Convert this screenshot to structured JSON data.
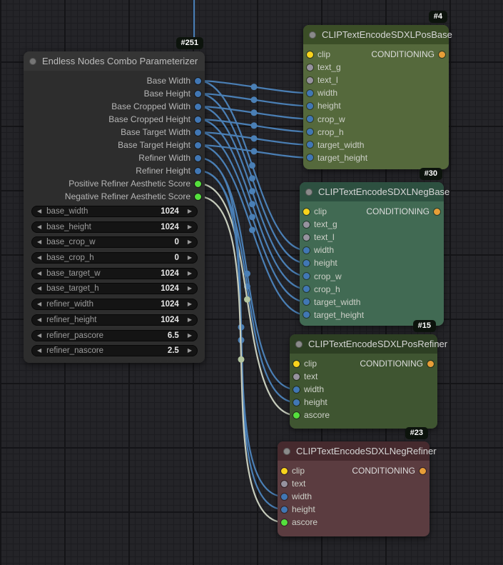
{
  "colors": {
    "link_int": "#4a7fb5",
    "link_float": "#c6ccbc",
    "middot_float": "#b4c6a0",
    "dot_int": "#4177b4",
    "dot_float": "#55df3d",
    "dot_clip": "#f8d31c",
    "dot_text": "#96929e",
    "dot_conditioning": "#e79e38",
    "badge_bg": "#0c130c"
  },
  "nodes": {
    "parameterizer": {
      "badge": "#251",
      "title": "Endless Nodes Combo Parameterizer",
      "header_color": "#353535",
      "body_color": "#2d2d2d",
      "outputs": [
        {
          "label": "Base Width",
          "type": "int"
        },
        {
          "label": "Base Height",
          "type": "int"
        },
        {
          "label": "Base Cropped Width",
          "type": "int"
        },
        {
          "label": "Base Cropped Height",
          "type": "int"
        },
        {
          "label": "Base Target Width",
          "type": "int"
        },
        {
          "label": "Base Target Height",
          "type": "int"
        },
        {
          "label": "Refiner Width",
          "type": "int"
        },
        {
          "label": "Refiner Height",
          "type": "int"
        },
        {
          "label": "Positive Refiner Aesthetic Score",
          "type": "float"
        },
        {
          "label": "Negative Refiner Aesthetic Score",
          "type": "float"
        }
      ],
      "widgets": [
        {
          "name": "base_width",
          "value": "1024"
        },
        {
          "name": "base_height",
          "value": "1024"
        },
        {
          "name": "base_crop_w",
          "value": "0"
        },
        {
          "name": "base_crop_h",
          "value": "0"
        },
        {
          "name": "base_target_w",
          "value": "1024"
        },
        {
          "name": "base_target_h",
          "value": "1024"
        },
        {
          "name": "refiner_width",
          "value": "1024"
        },
        {
          "name": "refiner_height",
          "value": "1024"
        },
        {
          "name": "refiner_pascore",
          "value": "6.5"
        },
        {
          "name": "refiner_nascore",
          "value": "2.5"
        }
      ]
    },
    "pos_base": {
      "badge": "#4",
      "title": "CLIPTextEncodeSDXLPosBase",
      "header_color": "#3b4e27",
      "body_color": "#55693c",
      "inputs": [
        {
          "label": "clip",
          "type": "clip"
        },
        {
          "label": "text_g",
          "type": "text"
        },
        {
          "label": "text_l",
          "type": "text"
        },
        {
          "label": "width",
          "type": "int"
        },
        {
          "label": "height",
          "type": "int"
        },
        {
          "label": "crop_w",
          "type": "int"
        },
        {
          "label": "crop_h",
          "type": "int"
        },
        {
          "label": "target_width",
          "type": "int"
        },
        {
          "label": "target_height",
          "type": "int"
        }
      ],
      "output": {
        "label": "CONDITIONING",
        "type": "conditioning"
      }
    },
    "neg_base": {
      "badge": "#30",
      "title": "CLIPTextEncodeSDXLNegBase",
      "header_color": "#2d5040",
      "body_color": "#416a53",
      "inputs": [
        {
          "label": "clip",
          "type": "clip"
        },
        {
          "label": "text_g",
          "type": "text"
        },
        {
          "label": "text_l",
          "type": "text"
        },
        {
          "label": "width",
          "type": "int"
        },
        {
          "label": "height",
          "type": "int"
        },
        {
          "label": "crop_w",
          "type": "int"
        },
        {
          "label": "crop_h",
          "type": "int"
        },
        {
          "label": "target_width",
          "type": "int"
        },
        {
          "label": "target_height",
          "type": "int"
        }
      ],
      "output": {
        "label": "CONDITIONING",
        "type": "conditioning"
      }
    },
    "pos_refiner": {
      "badge": "#15",
      "title": "CLIPTextEncodeSDXLPosRefiner",
      "header_color": "#2d3f23",
      "body_color": "#3f5531",
      "inputs": [
        {
          "label": "clip",
          "type": "clip"
        },
        {
          "label": "text",
          "type": "text"
        },
        {
          "label": "width",
          "type": "int"
        },
        {
          "label": "height",
          "type": "int"
        },
        {
          "label": "ascore",
          "type": "float"
        }
      ],
      "output": {
        "label": "CONDITIONING",
        "type": "conditioning"
      }
    },
    "neg_refiner": {
      "badge": "#23",
      "title": "CLIPTextEncodeSDXLNegRefiner",
      "header_color": "#462a2e",
      "body_color": "#5b3c40",
      "inputs": [
        {
          "label": "clip",
          "type": "clip"
        },
        {
          "label": "text",
          "type": "text"
        },
        {
          "label": "width",
          "type": "int"
        },
        {
          "label": "height",
          "type": "int"
        },
        {
          "label": "ascore",
          "type": "float"
        }
      ],
      "output": {
        "label": "CONDITIONING",
        "type": "conditioning"
      }
    }
  },
  "links": [
    {
      "from_node": "parameterizer",
      "from_slot": 0,
      "to_node": "pos_base",
      "to_slot": 3,
      "type": "int"
    },
    {
      "from_node": "parameterizer",
      "from_slot": 1,
      "to_node": "pos_base",
      "to_slot": 4,
      "type": "int"
    },
    {
      "from_node": "parameterizer",
      "from_slot": 2,
      "to_node": "pos_base",
      "to_slot": 5,
      "type": "int"
    },
    {
      "from_node": "parameterizer",
      "from_slot": 3,
      "to_node": "pos_base",
      "to_slot": 6,
      "type": "int"
    },
    {
      "from_node": "parameterizer",
      "from_slot": 4,
      "to_node": "pos_base",
      "to_slot": 7,
      "type": "int"
    },
    {
      "from_node": "parameterizer",
      "from_slot": 5,
      "to_node": "pos_base",
      "to_slot": 8,
      "type": "int"
    },
    {
      "from_node": "parameterizer",
      "from_slot": 0,
      "to_node": "neg_base",
      "to_slot": 3,
      "type": "int"
    },
    {
      "from_node": "parameterizer",
      "from_slot": 1,
      "to_node": "neg_base",
      "to_slot": 4,
      "type": "int"
    },
    {
      "from_node": "parameterizer",
      "from_slot": 2,
      "to_node": "neg_base",
      "to_slot": 5,
      "type": "int"
    },
    {
      "from_node": "parameterizer",
      "from_slot": 3,
      "to_node": "neg_base",
      "to_slot": 6,
      "type": "int"
    },
    {
      "from_node": "parameterizer",
      "from_slot": 4,
      "to_node": "neg_base",
      "to_slot": 7,
      "type": "int"
    },
    {
      "from_node": "parameterizer",
      "from_slot": 5,
      "to_node": "neg_base",
      "to_slot": 8,
      "type": "int"
    },
    {
      "from_node": "parameterizer",
      "from_slot": 6,
      "to_node": "pos_refiner",
      "to_slot": 2,
      "type": "int"
    },
    {
      "from_node": "parameterizer",
      "from_slot": 7,
      "to_node": "pos_refiner",
      "to_slot": 3,
      "type": "int"
    },
    {
      "from_node": "parameterizer",
      "from_slot": 8,
      "to_node": "pos_refiner",
      "to_slot": 4,
      "type": "float"
    },
    {
      "from_node": "parameterizer",
      "from_slot": 6,
      "to_node": "neg_refiner",
      "to_slot": 2,
      "type": "int"
    },
    {
      "from_node": "parameterizer",
      "from_slot": 7,
      "to_node": "neg_refiner",
      "to_slot": 3,
      "type": "int"
    },
    {
      "from_node": "parameterizer",
      "from_slot": 9,
      "to_node": "neg_refiner",
      "to_slot": 4,
      "type": "float"
    }
  ]
}
